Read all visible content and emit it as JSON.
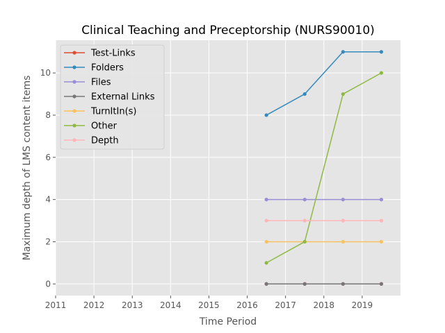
{
  "chart_data": {
    "type": "line",
    "title": "Clinical Teaching and Preceptorship (NURS90010)",
    "xlabel": "Time Period",
    "ylabel": "Maximum depth of LMS content items",
    "xlim": [
      2011,
      2020
    ],
    "ylim": [
      -0.55,
      11.55
    ],
    "xticks": [
      2011,
      2012,
      2013,
      2014,
      2015,
      2016,
      2017,
      2018,
      2019
    ],
    "yticks": [
      0,
      2,
      4,
      6,
      8,
      10
    ],
    "x": [
      2016.5,
      2017.5,
      2018.5,
      2019.5
    ],
    "grid": true,
    "legend_position": "top-left",
    "series": [
      {
        "name": "Test-Links",
        "color": "#E24A33",
        "values": [
          0,
          0,
          0,
          0
        ]
      },
      {
        "name": "Folders",
        "color": "#348ABD",
        "values": [
          8,
          9,
          11,
          11
        ]
      },
      {
        "name": "Files",
        "color": "#988ED5",
        "values": [
          4,
          4,
          4,
          4
        ]
      },
      {
        "name": "External Links",
        "color": "#777777",
        "values": [
          0,
          0,
          0,
          0
        ]
      },
      {
        "name": "TurnItIn(s)",
        "color": "#FBC15E",
        "values": [
          2,
          2,
          2,
          2
        ]
      },
      {
        "name": "Other",
        "color": "#8EBA42",
        "values": [
          1,
          2,
          9,
          10
        ]
      },
      {
        "name": "Depth",
        "color": "#FFB5B8",
        "values": [
          3,
          3,
          3,
          3
        ]
      }
    ]
  }
}
